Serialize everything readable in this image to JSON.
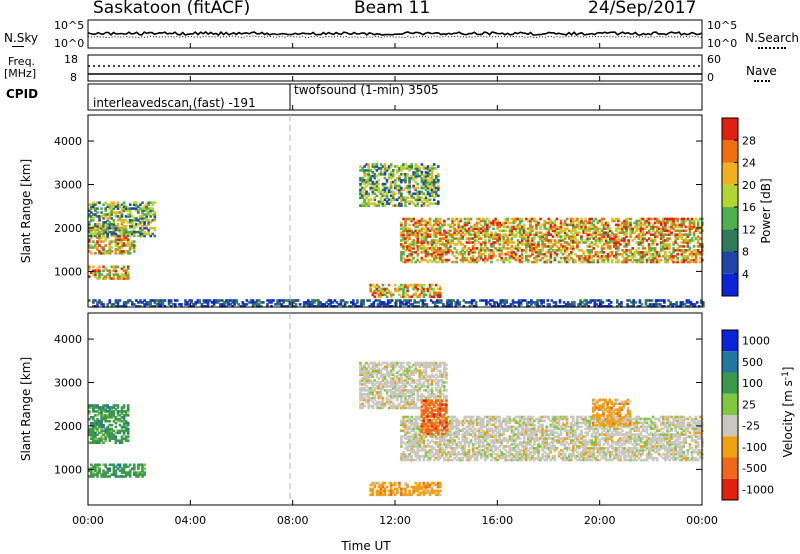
{
  "header": {
    "title": "Saskatoon (fitACF)",
    "beam": "Beam 11",
    "date": "24/Sep/2017"
  },
  "summary": {
    "left_label": "N.Sky",
    "right_label": "N.Search",
    "ticks_left": [
      "10^5",
      "10^0"
    ],
    "ticks_right": [
      "10^5",
      "10^0"
    ]
  },
  "freq": {
    "left_label_1": "Freq.",
    "left_label_2": "[MHz]",
    "right_label": "Nave",
    "ticks_left": [
      "18",
      "8"
    ],
    "ticks_right": [
      "60",
      "0"
    ]
  },
  "cpid": {
    "label": "CPID",
    "seg1": "interleavedscan (fast) -191",
    "seg2": "twofsound (1-min) 3505"
  },
  "axes": {
    "xlabel": "Time UT",
    "ylabel": "Slant Range [km]",
    "x_ticks": [
      "00:00",
      "04:00",
      "08:00",
      "12:00",
      "16:00",
      "20:00",
      "00:00"
    ],
    "y_ticks": [
      "1000",
      "2000",
      "3000",
      "4000"
    ]
  },
  "colorbars": {
    "power": {
      "label": "Power [dB]",
      "ticks": [
        "4",
        "8",
        "12",
        "16",
        "20",
        "24",
        "28"
      ],
      "colors": [
        "#0a22d8",
        "#2244a8",
        "#2f7a5a",
        "#50b050",
        "#b0d830",
        "#f0b020",
        "#f07010",
        "#e02010"
      ]
    },
    "velocity": {
      "label": "Velocity [m s^-1]",
      "ticks": [
        "1000",
        "500",
        "100",
        "25",
        "-25",
        "-100",
        "-500",
        "-1000"
      ],
      "colors": [
        "#0a22d8",
        "#2277a0",
        "#3a9a4a",
        "#80c840",
        "#c8c8c0",
        "#f0a010",
        "#f06818",
        "#e02010"
      ]
    }
  },
  "chart_data": [
    {
      "type": "heatmap",
      "title": "Power",
      "xlabel": "Time UT",
      "ylabel": "Slant Range [km]",
      "x_range_hours": [
        0,
        24
      ],
      "y_range_km": [
        180,
        4600
      ],
      "units": "dB",
      "regions": [
        {
          "t0": 0.0,
          "t1": 1.6,
          "r0": 820,
          "r1": 1100,
          "level": "high"
        },
        {
          "t0": 0.0,
          "t1": 1.8,
          "r0": 1400,
          "r1": 2000,
          "level": "high"
        },
        {
          "t0": 0.0,
          "t1": 2.6,
          "r0": 1800,
          "r1": 2600,
          "level": "medium"
        },
        {
          "t0": 10.6,
          "t1": 13.7,
          "r0": 2500,
          "r1": 3450,
          "level": "medium"
        },
        {
          "t0": 12.2,
          "t1": 24.0,
          "r0": 1200,
          "r1": 2200,
          "level": "high"
        },
        {
          "t0": 11.0,
          "t1": 13.8,
          "r0": 400,
          "r1": 680,
          "level": "high"
        },
        {
          "t0": 0.0,
          "t1": 24.0,
          "r0": 180,
          "r1": 350,
          "level": "low"
        }
      ]
    },
    {
      "type": "heatmap",
      "title": "Velocity",
      "xlabel": "Time UT",
      "ylabel": "Slant Range [km]",
      "x_range_hours": [
        0,
        24
      ],
      "y_range_km": [
        180,
        4600
      ],
      "units": "m s^-1",
      "regions": [
        {
          "t0": 0.0,
          "t1": 2.2,
          "r0": 820,
          "r1": 1100,
          "velocity": 100
        },
        {
          "t0": 0.0,
          "t1": 1.6,
          "r0": 1600,
          "r1": 2500,
          "velocity": 100
        },
        {
          "t0": 10.6,
          "t1": 14.0,
          "r0": 2400,
          "r1": 3450,
          "velocity": 0
        },
        {
          "t0": 12.2,
          "t1": 24.0,
          "r0": 1200,
          "r1": 2200,
          "velocity": 0
        },
        {
          "t0": 11.0,
          "t1": 13.8,
          "r0": 400,
          "r1": 680,
          "velocity": -100
        },
        {
          "t0": 13.0,
          "t1": 14.0,
          "r0": 1800,
          "r1": 2600,
          "velocity": -500
        },
        {
          "t0": 19.7,
          "t1": 21.2,
          "r0": 2000,
          "r1": 2600,
          "velocity": -100
        }
      ]
    }
  ]
}
